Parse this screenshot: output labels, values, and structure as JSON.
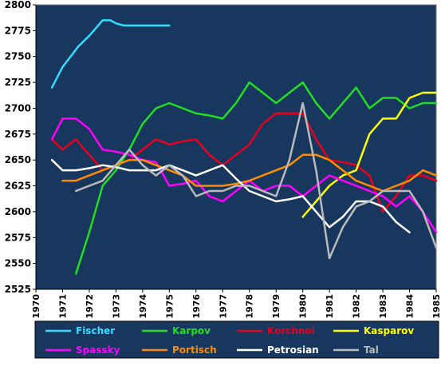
{
  "chart_data": {
    "type": "line",
    "title": "",
    "xlabel": "",
    "ylabel": "",
    "xlim": [
      1970,
      1985
    ],
    "ylim": [
      2525,
      2800
    ],
    "grid": false,
    "legend_position": "bottom",
    "background_color": "#17375e",
    "x_ticks": [
      "1970",
      "1971",
      "1972",
      "1973",
      "1974",
      "1975",
      "1976",
      "1977",
      "1978",
      "1979",
      "1980",
      "1981",
      "1982",
      "1983",
      "1984",
      "1985"
    ],
    "y_ticks": [
      "2525",
      "2550",
      "2575",
      "2600",
      "2625",
      "2650",
      "2675",
      "2700",
      "2725",
      "2750",
      "2775",
      "2800"
    ],
    "series": [
      {
        "name": "Fischer",
        "color": "#33ddff",
        "x": [
          1970.6,
          1971.0,
          1971.3,
          1971.6,
          1972.0,
          1972.5,
          1972.8,
          1973.0,
          1973.3,
          1973.5,
          1974.0,
          1974.5,
          1975.0
        ],
        "y": [
          2720,
          2740,
          2750,
          2760,
          2770,
          2785,
          2785,
          2782,
          2780,
          2780,
          2780,
          2780,
          2780
        ]
      },
      {
        "name": "Karpov",
        "color": "#22dd22",
        "x": [
          1971.5,
          1972.0,
          1972.5,
          1973.0,
          1973.5,
          1974.0,
          1974.5,
          1975.0,
          1975.5,
          1976.0,
          1976.5,
          1977.0,
          1977.5,
          1978.0,
          1978.5,
          1979.0,
          1979.5,
          1980.0,
          1980.5,
          1981.0,
          1981.5,
          1982.0,
          1982.5,
          1983.0,
          1983.5,
          1984.0,
          1984.5,
          1985.0
        ],
        "y": [
          2540,
          2580,
          2625,
          2640,
          2660,
          2685,
          2700,
          2705,
          2700,
          2695,
          2693,
          2690,
          2705,
          2725,
          2715,
          2705,
          2715,
          2725,
          2705,
          2690,
          2705,
          2720,
          2700,
          2710,
          2710,
          2700,
          2705,
          2705
        ]
      },
      {
        "name": "Korchnoi",
        "color": "#e8001e",
        "x": [
          1970.6,
          1971.0,
          1971.5,
          1972.0,
          1972.5,
          1973.0,
          1973.5,
          1974.0,
          1974.5,
          1975.0,
          1975.5,
          1976.0,
          1976.5,
          1977.0,
          1977.5,
          1978.0,
          1978.5,
          1979.0,
          1979.5,
          1980.0,
          1980.5,
          1981.0,
          1981.5,
          1982.0,
          1982.5,
          1983.0,
          1983.5,
          1984.0,
          1984.5,
          1985.0
        ],
        "y": [
          2670,
          2660,
          2670,
          2655,
          2640,
          2645,
          2650,
          2660,
          2670,
          2665,
          2668,
          2670,
          2655,
          2645,
          2655,
          2665,
          2685,
          2695,
          2695,
          2695,
          2670,
          2650,
          2648,
          2645,
          2635,
          2600,
          2615,
          2635,
          2635,
          2630
        ]
      },
      {
        "name": "Kasparov",
        "color": "#ffff00",
        "x": [
          1980.0,
          1980.5,
          1981.0,
          1981.5,
          1982.0,
          1982.5,
          1983.0,
          1983.5,
          1984.0,
          1984.5,
          1985.0
        ],
        "y": [
          2595,
          2610,
          2625,
          2635,
          2640,
          2675,
          2690,
          2690,
          2710,
          2715,
          2715
        ]
      },
      {
        "name": "Spassky",
        "color": "#ff00ff",
        "x": [
          1970.6,
          1971.0,
          1971.5,
          1972.0,
          1972.5,
          1973.0,
          1973.5,
          1974.0,
          1974.5,
          1975.0,
          1975.5,
          1976.0,
          1976.5,
          1977.0,
          1977.5,
          1978.0,
          1978.5,
          1979.0,
          1979.5,
          1980.0,
          1980.5,
          1981.0,
          1981.5,
          1982.0,
          1982.5,
          1983.0,
          1983.5,
          1984.0,
          1984.5,
          1985.0
        ],
        "y": [
          2670,
          2690,
          2690,
          2680,
          2660,
          2658,
          2655,
          2650,
          2648,
          2625,
          2627,
          2630,
          2615,
          2610,
          2620,
          2630,
          2620,
          2625,
          2625,
          2615,
          2625,
          2635,
          2630,
          2625,
          2620,
          2615,
          2605,
          2615,
          2600,
          2580
        ]
      },
      {
        "name": "Portisch",
        "color": "#ff8c00",
        "x": [
          1971.0,
          1971.5,
          1972.0,
          1972.5,
          1973.0,
          1973.5,
          1974.0,
          1974.5,
          1975.0,
          1975.5,
          1976.0,
          1976.5,
          1977.0,
          1977.5,
          1978.0,
          1978.5,
          1979.0,
          1979.5,
          1980.0,
          1980.5,
          1981.0,
          1981.5,
          1982.0,
          1982.5,
          1983.0,
          1983.5,
          1984.0,
          1984.5,
          1985.0
        ],
        "y": [
          2630,
          2630,
          2635,
          2640,
          2645,
          2650,
          2650,
          2645,
          2640,
          2635,
          2625,
          2625,
          2625,
          2627,
          2630,
          2635,
          2640,
          2645,
          2655,
          2655,
          2650,
          2640,
          2630,
          2625,
          2620,
          2625,
          2630,
          2640,
          2635
        ]
      },
      {
        "name": "Petrosian",
        "color": "#ffffff",
        "x": [
          1970.6,
          1971.0,
          1971.5,
          1972.0,
          1972.5,
          1973.0,
          1973.5,
          1974.0,
          1974.5,
          1975.0,
          1975.5,
          1976.0,
          1976.5,
          1977.0,
          1977.5,
          1978.0,
          1978.5,
          1979.0,
          1979.5,
          1980.0,
          1980.5,
          1981.0,
          1981.5,
          1982.0,
          1982.5,
          1983.0,
          1983.5,
          1984.0
        ],
        "y": [
          2650,
          2640,
          2640,
          2642,
          2645,
          2643,
          2640,
          2640,
          2640,
          2645,
          2640,
          2635,
          2640,
          2645,
          2632,
          2620,
          2615,
          2610,
          2612,
          2615,
          2600,
          2585,
          2595,
          2610,
          2610,
          2605,
          2590,
          2580
        ]
      },
      {
        "name": "Tal",
        "color": "#bbbbbb",
        "x": [
          1971.5,
          1972.0,
          1972.5,
          1973.0,
          1973.5,
          1974.0,
          1974.5,
          1975.0,
          1975.5,
          1976.0,
          1976.5,
          1977.0,
          1977.5,
          1978.0,
          1978.5,
          1979.0,
          1979.5,
          1980.0,
          1980.5,
          1981.0,
          1981.5,
          1982.0,
          1982.5,
          1983.0,
          1983.5,
          1984.0,
          1984.5,
          1985.0
        ],
        "y": [
          2620,
          2625,
          2630,
          2645,
          2660,
          2645,
          2635,
          2645,
          2635,
          2615,
          2620,
          2620,
          2625,
          2625,
          2620,
          2615,
          2650,
          2705,
          2640,
          2555,
          2585,
          2605,
          2610,
          2620,
          2620,
          2620,
          2600,
          2565
        ]
      }
    ]
  }
}
